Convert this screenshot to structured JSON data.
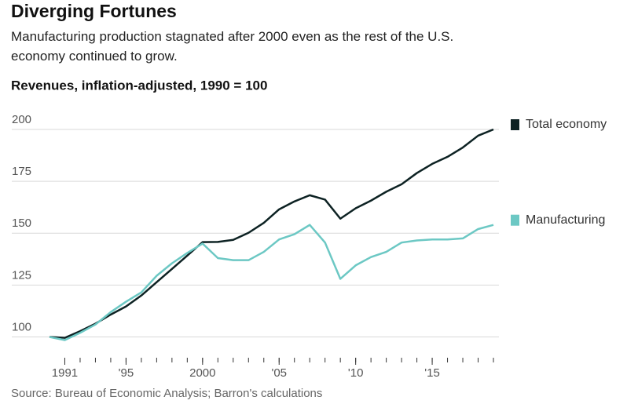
{
  "chart_data": {
    "type": "line",
    "title": "Diverging Fortunes",
    "subtitle": "Manufacturing production stagnated after 2000 even as the rest of the U.S. economy continued to grow.",
    "y_label": "Revenues, inflation-adjusted, 1990 = 100",
    "source": "Source: Bureau of Economic Analysis; Barron's calculations",
    "x": [
      1990,
      1991,
      1992,
      1993,
      1994,
      1995,
      1996,
      1997,
      1998,
      1999,
      2000,
      2001,
      2002,
      2003,
      2004,
      2005,
      2006,
      2007,
      2008,
      2009,
      2010,
      2011,
      2012,
      2013,
      2014,
      2015,
      2016,
      2017,
      2018,
      2019
    ],
    "series": [
      {
        "name": "Total economy",
        "color": "#0d2223",
        "values": [
          100,
          99.6,
          102.8,
          106.4,
          110.8,
          114.7,
          120,
          126.4,
          132.8,
          139.2,
          145.7,
          145.8,
          146.8,
          150.2,
          155,
          161.5,
          165.3,
          168.3,
          166.2,
          157,
          162,
          165.7,
          170,
          173.6,
          179,
          183.4,
          186.8,
          191.3,
          197,
          200
        ]
      },
      {
        "name": "Manufacturing",
        "color": "#6cc8c4",
        "values": [
          100,
          98.5,
          102,
          106,
          112,
          117,
          121.5,
          129.5,
          135.5,
          140.5,
          145,
          138,
          137,
          137,
          141,
          147,
          149.5,
          154,
          145.5,
          128,
          134.5,
          138.5,
          141,
          145.5,
          146.5,
          147,
          147,
          147.5,
          152,
          154
        ]
      }
    ],
    "xlim": [
      1990,
      2019
    ],
    "xticks": [
      {
        "value": 1991,
        "label": "1991"
      },
      {
        "value": 1995,
        "label": "'95"
      },
      {
        "value": 2000,
        "label": "2000"
      },
      {
        "value": 2005,
        "label": "'05"
      },
      {
        "value": 2010,
        "label": "'10"
      },
      {
        "value": 2015,
        "label": "'15"
      }
    ],
    "xminorticks": [
      1991,
      1992,
      1993,
      1994,
      1995,
      1996,
      1997,
      1998,
      1999,
      2000,
      2001,
      2002,
      2003,
      2004,
      2005,
      2006,
      2007,
      2008,
      2009,
      2010,
      2011,
      2012,
      2013,
      2014,
      2015,
      2016,
      2017,
      2018,
      2019
    ],
    "ylim": [
      90,
      200
    ],
    "yticks": [
      100,
      125,
      150,
      175,
      200
    ],
    "grid": true,
    "legend": "right-at-line-end"
  }
}
